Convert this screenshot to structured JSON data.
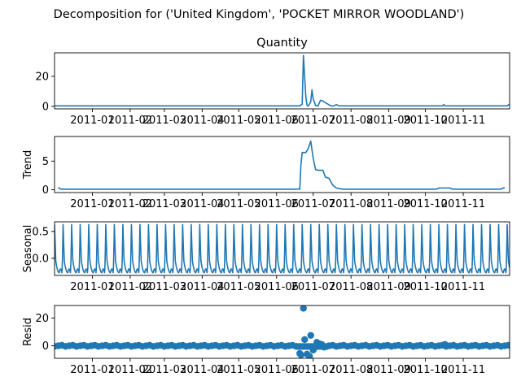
{
  "chart_data": {
    "type": "line",
    "suptitle": "Decomposition for ('United Kingdom', 'POCKET MIRROR WOODLAND')",
    "series_color": "#1f77b4",
    "x_range": [
      "2010-12-01",
      "2011-12-09"
    ],
    "x_ticks": [
      "2011-01",
      "2011-02",
      "2011-03",
      "2011-04",
      "2011-05",
      "2011-06",
      "2011-07",
      "2011-08",
      "2011-09",
      "2011-10",
      "2011-11"
    ],
    "x_tick_dates": [
      "2011-01-01",
      "2011-02-01",
      "2011-03-01",
      "2011-04-01",
      "2011-05-01",
      "2011-06-01",
      "2011-07-01",
      "2011-08-01",
      "2011-09-01",
      "2011-10-01",
      "2011-11-01"
    ],
    "panels": [
      {
        "title": "Quantity",
        "ylabel": "",
        "kind": "line",
        "ylim": [
          -1.7,
          35.7
        ],
        "yticks": [
          0,
          20
        ],
        "points": [
          [
            "2010-12-01",
            0.3
          ],
          [
            "2011-06-20",
            0.3
          ],
          [
            "2011-06-22",
            1.5
          ],
          [
            "2011-06-23",
            34
          ],
          [
            "2011-06-25",
            6
          ],
          [
            "2011-06-26",
            0.5
          ],
          [
            "2011-06-27",
            0.2
          ],
          [
            "2011-06-29",
            3
          ],
          [
            "2011-06-30",
            11
          ],
          [
            "2011-07-01",
            5
          ],
          [
            "2011-07-03",
            0.5
          ],
          [
            "2011-07-05",
            0.3
          ],
          [
            "2011-07-07",
            4
          ],
          [
            "2011-07-09",
            3.5
          ],
          [
            "2011-07-12",
            2
          ],
          [
            "2011-07-14",
            1
          ],
          [
            "2011-07-16",
            0.2
          ],
          [
            "2011-07-18",
            0.2
          ],
          [
            "2011-07-20",
            1.2
          ],
          [
            "2011-07-22",
            0.3
          ],
          [
            "2011-10-15",
            0.3
          ],
          [
            "2011-10-16",
            1.2
          ],
          [
            "2011-10-17",
            0.3
          ],
          [
            "2011-12-07",
            0.3
          ],
          [
            "2011-12-09",
            1.5
          ]
        ]
      },
      {
        "title": "",
        "ylabel": "Trend",
        "kind": "line",
        "ylim": [
          -0.5,
          9.3
        ],
        "yticks": [
          0,
          5
        ],
        "points": [
          [
            "2010-12-04",
            0.4
          ],
          [
            "2010-12-06",
            0.1
          ],
          [
            "2011-06-20",
            0.1
          ],
          [
            "2011-06-21",
            4.5
          ],
          [
            "2011-06-22",
            6.5
          ],
          [
            "2011-06-25",
            6.5
          ],
          [
            "2011-06-27",
            7.2
          ],
          [
            "2011-06-29",
            8.5
          ],
          [
            "2011-07-01",
            5.5
          ],
          [
            "2011-07-03",
            3.5
          ],
          [
            "2011-07-05",
            3.4
          ],
          [
            "2011-07-09",
            3.4
          ],
          [
            "2011-07-11",
            2.2
          ],
          [
            "2011-07-14",
            2.0
          ],
          [
            "2011-07-17",
            0.8
          ],
          [
            "2011-07-20",
            0.3
          ],
          [
            "2011-07-25",
            0.1
          ],
          [
            "2011-10-10",
            0.1
          ],
          [
            "2011-10-12",
            0.3
          ],
          [
            "2011-10-21",
            0.3
          ],
          [
            "2011-10-23",
            0.1
          ],
          [
            "2011-12-02",
            0.1
          ],
          [
            "2011-12-05",
            0.4
          ]
        ]
      },
      {
        "title": "",
        "ylabel": "Seasonal",
        "kind": "seasonal",
        "ylim": [
          -0.32,
          0.68
        ],
        "yticks": [
          -0.0,
          0.5
        ],
        "ytick_labels": [
          "0.0",
          "0.5"
        ],
        "period_days": 7,
        "peak": 0.63,
        "trough": -0.27,
        "start": "2010-12-01",
        "end": "2011-12-09"
      },
      {
        "title": "",
        "ylabel": "Resid",
        "kind": "scatter",
        "ylim": [
          -9,
          29
        ],
        "yticks": [
          0,
          20
        ],
        "baseline_start": "2010-12-01",
        "baseline_end": "2011-12-09",
        "baseline_step_days": 3,
        "outliers": [
          [
            "2011-06-20",
            -5.5
          ],
          [
            "2011-06-21",
            -6.5
          ],
          [
            "2011-06-23",
            27
          ],
          [
            "2011-06-24",
            4.5
          ],
          [
            "2011-06-26",
            -6
          ],
          [
            "2011-06-28",
            -7.5
          ],
          [
            "2011-06-29",
            7.5
          ],
          [
            "2011-07-01",
            -3
          ],
          [
            "2011-07-02",
            -1.5
          ],
          [
            "2011-07-04",
            2.5
          ],
          [
            "2011-07-06",
            1.5
          ],
          [
            "2011-07-08",
            1.0
          ],
          [
            "2011-07-10",
            -1.0
          ],
          [
            "2011-10-17",
            1.0
          ]
        ]
      }
    ]
  }
}
